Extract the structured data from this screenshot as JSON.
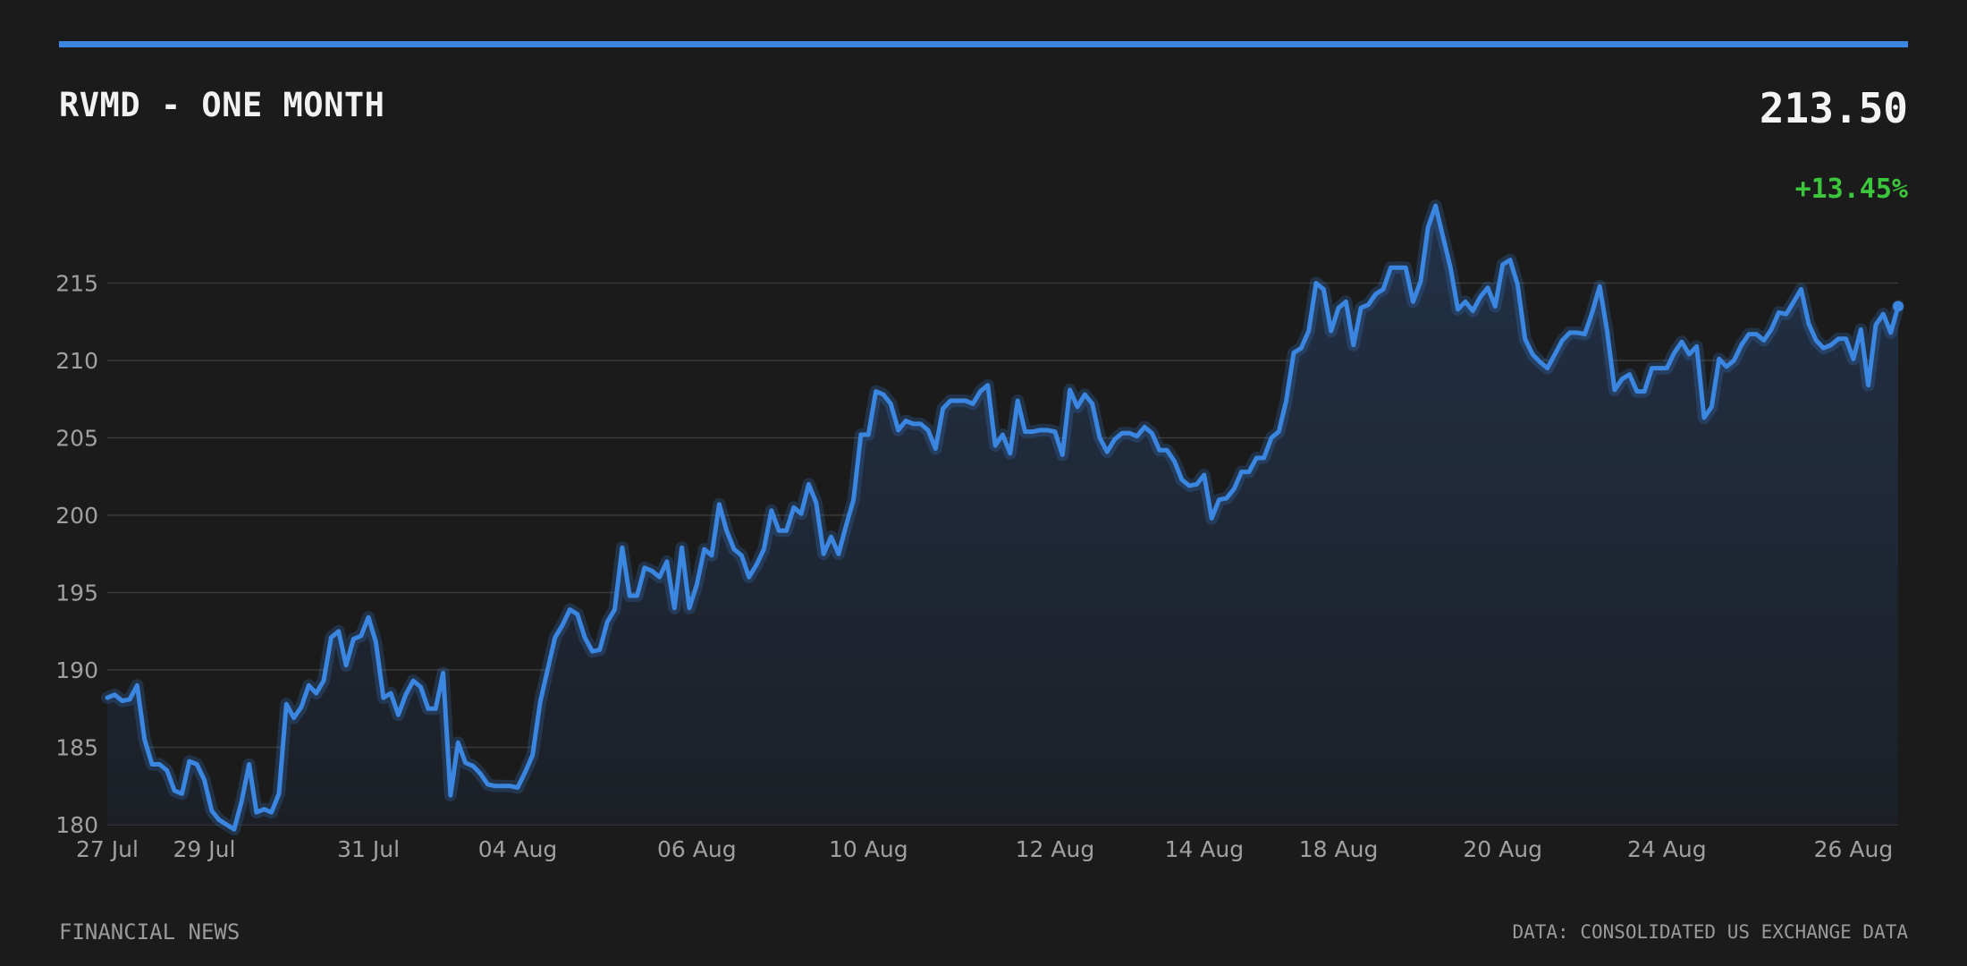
{
  "header": {
    "title": "RVMD - ONE MONTH",
    "price": "213.50",
    "change": "+13.45%"
  },
  "footer": {
    "source_left": "FINANCIAL NEWS",
    "source_right": "DATA: CONSOLIDATED US EXCHANGE DATA"
  },
  "colors": {
    "background": "#1b1b1b",
    "accent_line": "#3b86e0",
    "positive_change": "#3cc63c",
    "grid": "#3a3a3a",
    "area_fill_top": "#22324a"
  },
  "chart_data": {
    "type": "area",
    "title": "RVMD - ONE MONTH",
    "xlabel": "",
    "ylabel": "",
    "ylim": [
      180,
      220
    ],
    "yticks": [
      180,
      185,
      190,
      195,
      200,
      205,
      210,
      215
    ],
    "xtick_labels": [
      "27 Jul",
      "29 Jul",
      "31 Jul",
      "04 Aug",
      "06 Aug",
      "10 Aug",
      "12 Aug",
      "14 Aug",
      "18 Aug",
      "20 Aug",
      "24 Aug",
      "26 Aug"
    ],
    "xtick_index": [
      0,
      13,
      35,
      55,
      79,
      102,
      127,
      147,
      165,
      187,
      209,
      234
    ],
    "grid": true,
    "series": [
      {
        "values": [
          188.2,
          188.4,
          188.0,
          188.1,
          189.0,
          185.5,
          183.9,
          183.9,
          183.5,
          182.2,
          182.0,
          184.1,
          183.9,
          182.9,
          180.9,
          180.3,
          180.0,
          179.7,
          181.5,
          183.9,
          180.8,
          181.0,
          180.8,
          182.0,
          187.8,
          186.9,
          187.6,
          189.0,
          188.5,
          189.3,
          192.1,
          192.5,
          190.3,
          192.0,
          192.2,
          193.4,
          191.8,
          188.2,
          188.5,
          187.1,
          188.4,
          189.3,
          188.9,
          187.5,
          187.5,
          189.8,
          181.9,
          185.3,
          184.0,
          183.8,
          183.3,
          182.6,
          182.5,
          182.5,
          182.5,
          182.4,
          183.4,
          184.5,
          187.9,
          190.0,
          192.1,
          192.9,
          193.9,
          193.6,
          192.1,
          191.2,
          191.3,
          193.1,
          193.9,
          197.9,
          194.8,
          194.8,
          196.6,
          196.4,
          196.0,
          197.0,
          194.0,
          197.9,
          194.0,
          195.5,
          197.8,
          197.4,
          200.7,
          199.0,
          197.8,
          197.4,
          196.0,
          196.8,
          197.8,
          200.3,
          199.0,
          199.0,
          200.5,
          200.1,
          202.0,
          200.8,
          197.5,
          198.6,
          197.5,
          199.3,
          201.0,
          205.2,
          205.2,
          208.0,
          207.8,
          207.2,
          205.5,
          206.1,
          205.9,
          205.9,
          205.5,
          204.3,
          206.9,
          207.4,
          207.4,
          207.4,
          207.2,
          208.0,
          208.4,
          204.5,
          205.2,
          204.0,
          207.4,
          205.4,
          205.4,
          205.5,
          205.5,
          205.4,
          203.9,
          208.1,
          207.0,
          207.8,
          207.2,
          205.0,
          204.1,
          204.9,
          205.3,
          205.3,
          205.1,
          205.7,
          205.3,
          204.2,
          204.2,
          203.5,
          202.3,
          201.9,
          202.0,
          202.6,
          199.8,
          201.0,
          201.1,
          201.7,
          202.8,
          202.8,
          203.7,
          203.7,
          205.0,
          205.4,
          207.4,
          210.5,
          210.8,
          211.9,
          215.0,
          214.6,
          211.9,
          213.4,
          213.8,
          211.0,
          213.4,
          213.6,
          214.3,
          214.6,
          216.0,
          216.0,
          216.0,
          213.8,
          215.1,
          218.6,
          220.0,
          218.0,
          216.0,
          213.3,
          213.8,
          213.2,
          214.1,
          214.7,
          213.5,
          216.2,
          216.5,
          214.9,
          211.4,
          210.4,
          209.9,
          209.5,
          210.4,
          211.3,
          211.8,
          211.8,
          211.7,
          213.1,
          214.8,
          211.9,
          208.1,
          208.8,
          209.1,
          208.0,
          208.0,
          209.5,
          209.5,
          209.5,
          210.5,
          211.2,
          210.4,
          210.9,
          206.3,
          207.0,
          210.1,
          209.6,
          210.0,
          211.0,
          211.7,
          211.7,
          211.3,
          212.0,
          213.1,
          213.0,
          213.8,
          214.6,
          212.4,
          211.3,
          210.8,
          211.0,
          211.4,
          211.4,
          210.1,
          212.0,
          208.4,
          212.3,
          213.0,
          211.8,
          213.5
        ]
      }
    ]
  }
}
